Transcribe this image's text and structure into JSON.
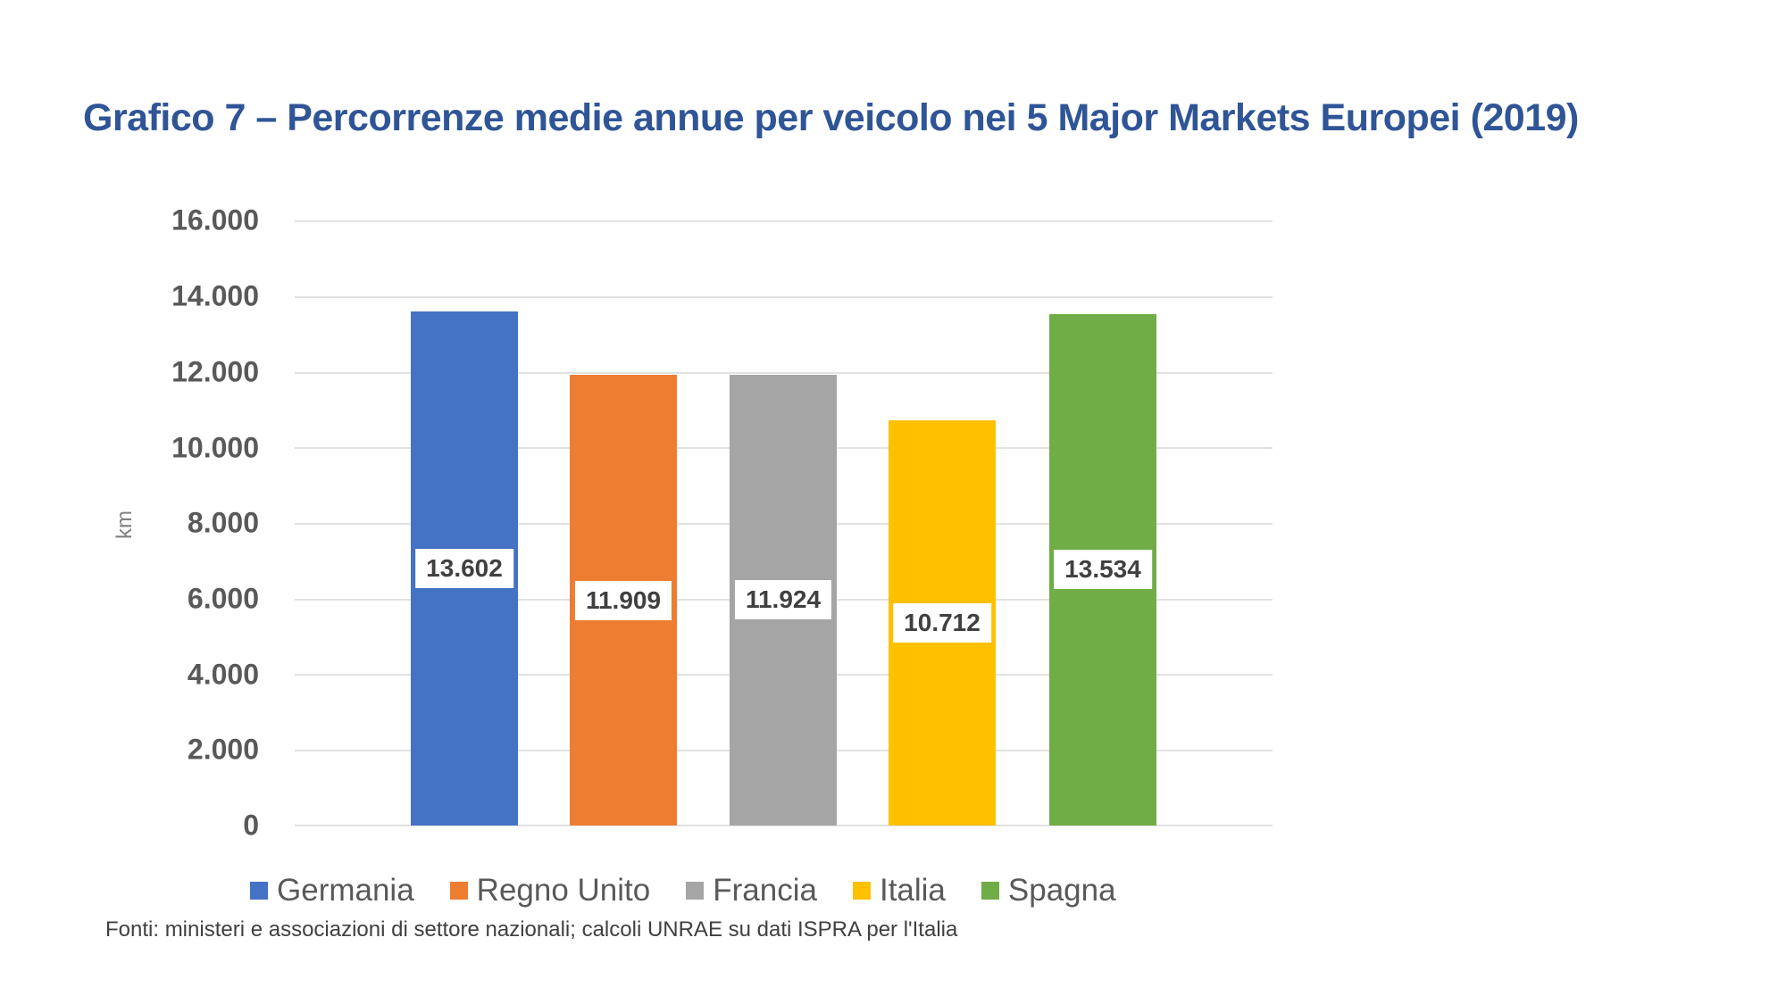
{
  "title": "Grafico 7 – Percorrenze medie annue per veicolo nei 5 Major Markets Europei (2019)",
  "y_axis": {
    "label": "km",
    "ticks": [
      "0",
      "2.000",
      "4.000",
      "6.000",
      "8.000",
      "10.000",
      "12.000",
      "14.000",
      "16.000"
    ]
  },
  "bars": [
    {
      "name": "Germania",
      "value": 13602,
      "label": "13.602",
      "color": "#4472c4"
    },
    {
      "name": "Regno Unito",
      "value": 11909,
      "label": "11.909",
      "color": "#ed7d31"
    },
    {
      "name": "Francia",
      "value": 11924,
      "label": "11.924",
      "color": "#a5a5a5"
    },
    {
      "name": "Italia",
      "value": 10712,
      "label": "10.712",
      "color": "#ffc000"
    },
    {
      "name": "Spagna",
      "value": 13534,
      "label": "13.534",
      "color": "#70ad47"
    }
  ],
  "legend": [
    {
      "label": "Germania",
      "color": "#4472c4"
    },
    {
      "label": "Regno Unito",
      "color": "#ed7d31"
    },
    {
      "label": "Francia",
      "color": "#a5a5a5"
    },
    {
      "label": "Italia",
      "color": "#ffc000"
    },
    {
      "label": "Spagna",
      "color": "#70ad47"
    }
  ],
  "source": "Fonti: ministeri e associazioni di settore nazionali; calcoli UNRAE su dati ISPRA per l'Italia",
  "chart_data": {
    "type": "bar",
    "title": "Grafico 7 – Percorrenze medie annue per veicolo nei 5 Major Markets Europei (2019)",
    "categories": [
      "Germania",
      "Regno Unito",
      "Francia",
      "Italia",
      "Spagna"
    ],
    "values": [
      13602,
      11909,
      11924,
      10712,
      13534
    ],
    "value_labels": [
      "13.602",
      "11.909",
      "11.924",
      "10.712",
      "13.534"
    ],
    "colors": [
      "#4472c4",
      "#ed7d31",
      "#a5a5a5",
      "#ffc000",
      "#70ad47"
    ],
    "xlabel": "",
    "ylabel": "km",
    "ylim": [
      0,
      16000
    ],
    "yticks": [
      0,
      2000,
      4000,
      6000,
      8000,
      10000,
      12000,
      14000,
      16000
    ],
    "grid": true,
    "legend_position": "bottom",
    "source": "Fonti: ministeri e associazioni di settore nazionali; calcoli UNRAE su dati ISPRA per l'Italia"
  }
}
